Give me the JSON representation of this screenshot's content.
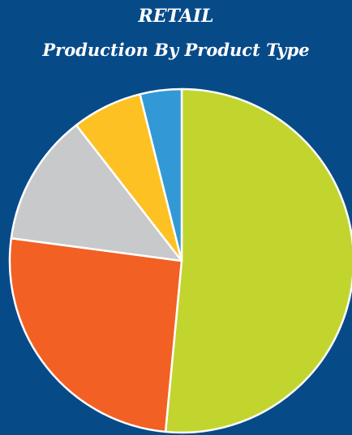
{
  "chart_data": {
    "type": "pie",
    "title": "RETAIL",
    "subtitle": "Production By Product Type",
    "categories": [
      "",
      "",
      "",
      "",
      ""
    ],
    "values": [
      51.5,
      25.6,
      12.4,
      6.6,
      3.9
    ],
    "colors": [
      "#c2d52f",
      "#f26024",
      "#c8c9cb",
      "#fdc124",
      "#3399d6"
    ],
    "legend": "none",
    "start_angle_deg": 0,
    "direction": "clockwise"
  }
}
